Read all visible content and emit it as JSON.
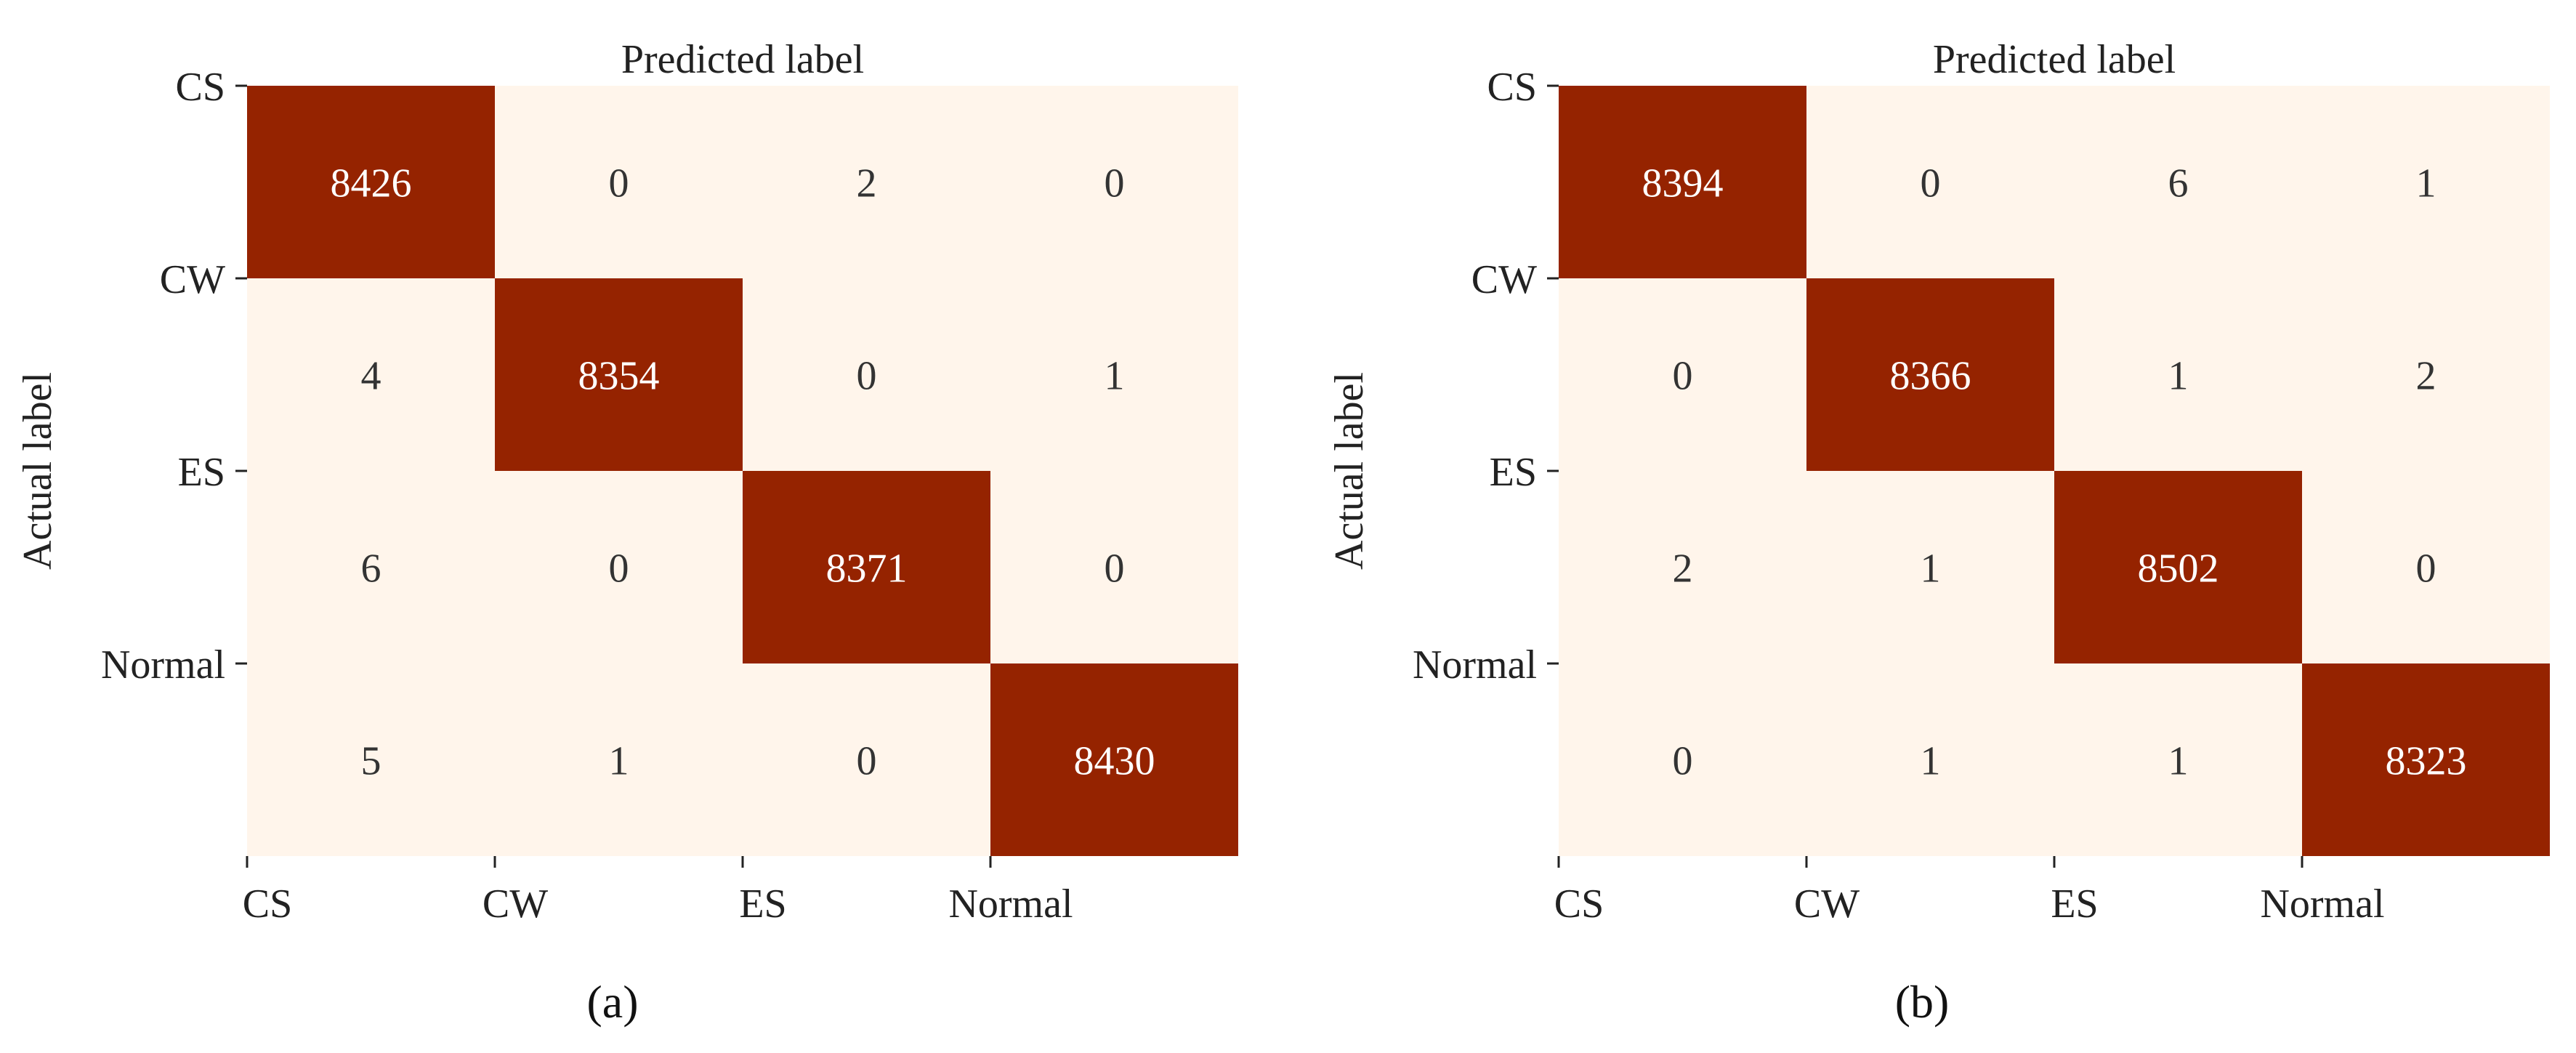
{
  "colors": {
    "cell_low": "#fff5eb",
    "cell_high": "#952300",
    "text_on_low": "#333333",
    "text_on_high": "#ffffff",
    "axis": "#222222"
  },
  "chart_data": [
    {
      "type": "heatmap",
      "panel_label": "(a)",
      "xlabel": "Predicted label",
      "ylabel": "Actual label",
      "x_categories": [
        "CS",
        "CW",
        "ES",
        "Normal"
      ],
      "y_categories": [
        "CS",
        "CW",
        "ES",
        "Normal"
      ],
      "matrix": [
        [
          8426,
          0,
          2,
          0
        ],
        [
          4,
          8354,
          0,
          1
        ],
        [
          6,
          0,
          8371,
          0
        ],
        [
          5,
          1,
          0,
          8430
        ]
      ],
      "legend": "none",
      "grid": false
    },
    {
      "type": "heatmap",
      "panel_label": "(b)",
      "xlabel": "Predicted label",
      "ylabel": "Actual label",
      "x_categories": [
        "CS",
        "CW",
        "ES",
        "Normal"
      ],
      "y_categories": [
        "CS",
        "CW",
        "ES",
        "Normal"
      ],
      "matrix": [
        [
          8394,
          0,
          6,
          1
        ],
        [
          0,
          8366,
          1,
          2
        ],
        [
          2,
          1,
          8502,
          0
        ],
        [
          0,
          1,
          1,
          8323
        ]
      ],
      "legend": "none",
      "grid": false
    }
  ]
}
